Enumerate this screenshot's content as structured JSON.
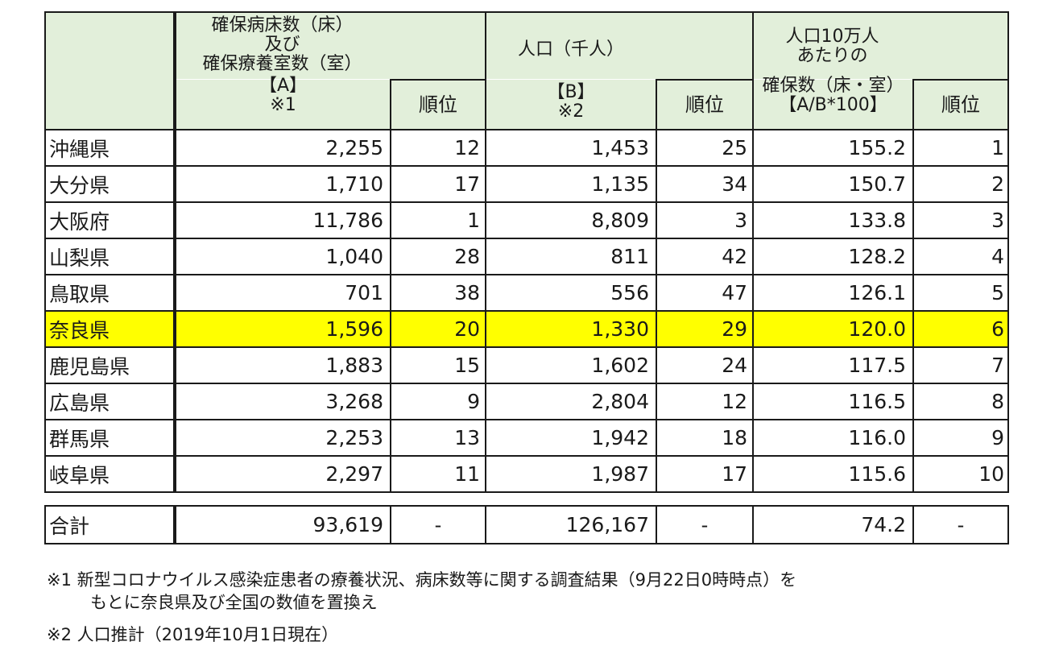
{
  "headers": {
    "a_line1": "確保病床数（床）",
    "a_line2": "及び",
    "a_line3": "確保療養室数（室）",
    "a_line4": "【A】",
    "a_line5": "※1",
    "rank": "順位",
    "b_line1": "人口（千人）",
    "b_line2": "【B】",
    "b_line3": "※2",
    "c_line1": "人口10万人",
    "c_line2": "あたりの",
    "c_line3": "確保数（床・室）",
    "c_line4": "【A/B*100】"
  },
  "rows": [
    {
      "pref": "沖縄県",
      "a": "2,255",
      "a_rank": "12",
      "b": "1,453",
      "b_rank": "25",
      "c": "155.2",
      "c_rank": "1"
    },
    {
      "pref": "大分県",
      "a": "1,710",
      "a_rank": "17",
      "b": "1,135",
      "b_rank": "34",
      "c": "150.7",
      "c_rank": "2"
    },
    {
      "pref": "大阪府",
      "a": "11,786",
      "a_rank": "1",
      "b": "8,809",
      "b_rank": "3",
      "c": "133.8",
      "c_rank": "3"
    },
    {
      "pref": "山梨県",
      "a": "1,040",
      "a_rank": "28",
      "b": "811",
      "b_rank": "42",
      "c": "128.2",
      "c_rank": "4"
    },
    {
      "pref": "鳥取県",
      "a": "701",
      "a_rank": "38",
      "b": "556",
      "b_rank": "47",
      "c": "126.1",
      "c_rank": "5"
    },
    {
      "pref": "奈良県",
      "a": "1,596",
      "a_rank": "20",
      "b": "1,330",
      "b_rank": "29",
      "c": "120.0",
      "c_rank": "6"
    },
    {
      "pref": "鹿児島県",
      "a": "1,883",
      "a_rank": "15",
      "b": "1,602",
      "b_rank": "24",
      "c": "117.5",
      "c_rank": "7"
    },
    {
      "pref": "広島県",
      "a": "3,268",
      "a_rank": "9",
      "b": "2,804",
      "b_rank": "12",
      "c": "116.5",
      "c_rank": "8"
    },
    {
      "pref": "群馬県",
      "a": "2,253",
      "a_rank": "13",
      "b": "1,942",
      "b_rank": "18",
      "c": "116.0",
      "c_rank": "9"
    },
    {
      "pref": "岐阜県",
      "a": "2,297",
      "a_rank": "11",
      "b": "1,987",
      "b_rank": "17",
      "c": "115.6",
      "c_rank": "10"
    }
  ],
  "total": {
    "label": "合計",
    "a": "93,619",
    "a_rank": "-",
    "b": "126,167",
    "b_rank": "-",
    "c": "74.2",
    "c_rank": "-"
  },
  "notes": {
    "note1_line1": "※1  新型コロナウイルス感染症患者の療養状況、病床数等に関する調査結果（9月22日0時時点）を",
    "note1_line2": "もとに奈良県及び全国の数値を置換え",
    "note2": "※2  人口推計（2019年10月1日現在）"
  },
  "colors": {
    "header_bg": "#e2efda",
    "highlight": "#ffff00"
  }
}
